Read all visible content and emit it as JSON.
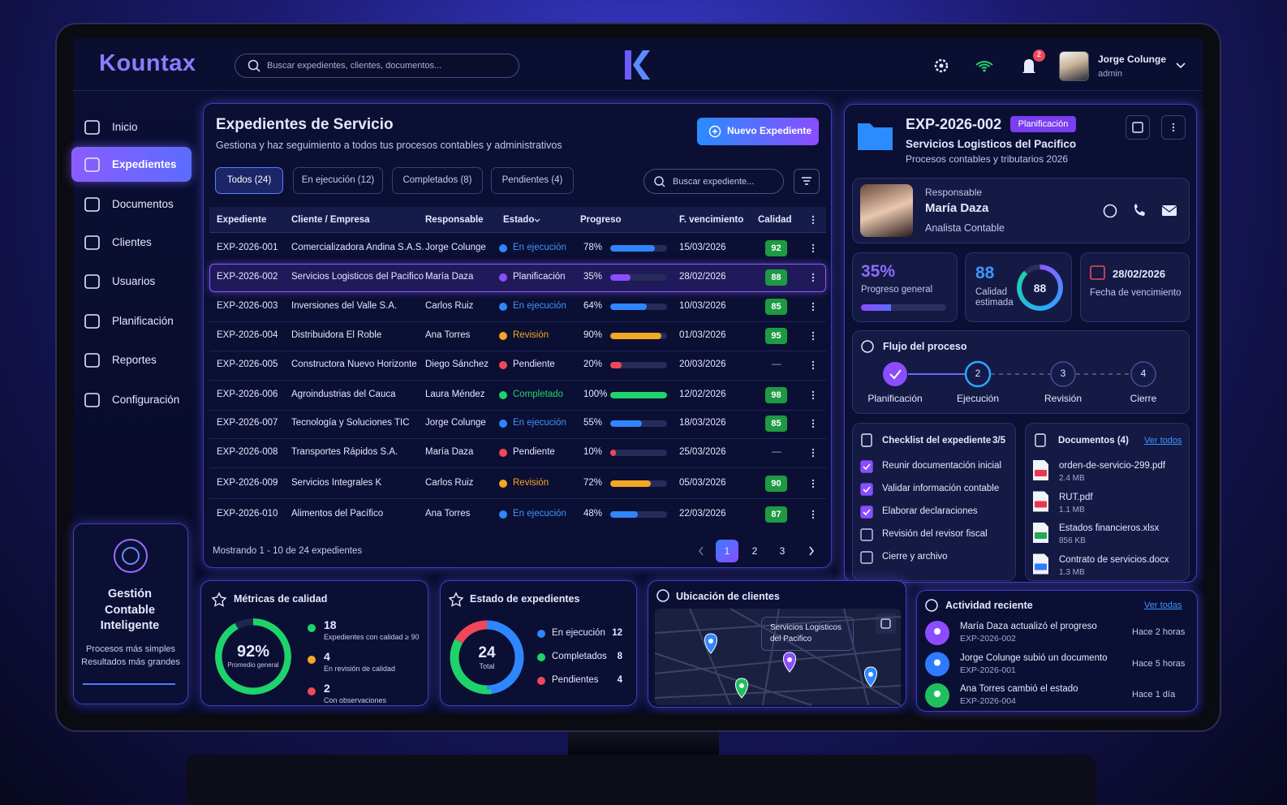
{
  "header": {
    "brand": "Kountax",
    "search_placeholder": "Buscar expedientes, clientes, documentos...",
    "notifications": "2",
    "user_name": "Jorge Colunge",
    "user_role": "admin"
  },
  "sidebar": {
    "items": [
      "Inicio",
      "Expedientes",
      "Documentos",
      "Clientes",
      "Usuarios",
      "Planificación",
      "Reportes",
      "Configuración"
    ],
    "active": 1,
    "promo_title": "Gestión Contable Inteligente",
    "promo_lines": [
      "Procesos más simples",
      "Resultados más grandes"
    ]
  },
  "main": {
    "title": "Expedientes de Servicio",
    "subtitle": "Gestiona y haz seguimiento a todos tus procesos contables y administrativos",
    "button": "Nuevo Expediente",
    "tabs": [
      "Todos (24)",
      "En ejecución (12)",
      "Completados (8)",
      "Pendientes (4)"
    ],
    "active_tab": 0,
    "search_placeholder": "Buscar expediente...",
    "columns": [
      "Expediente",
      "Cliente / Empresa",
      "Responsable",
      "Estado",
      "Progreso",
      "F. vencimiento",
      "Calidad"
    ],
    "selected_row": 1,
    "rows": [
      {
        "id": "EXP-2026-001",
        "client": "Comercializadora Andina S.A.S.",
        "owner": "Jorge Colunge",
        "status": "En ejecución",
        "color": "#2f86ff",
        "status_text_color": "#3d95ff",
        "progress": 78,
        "progress_label": "78%",
        "due": "15/03/2026",
        "quality": 92
      },
      {
        "id": "EXP-2026-002",
        "client": "Servicios Logisticos del Pacifico",
        "owner": "María Daza",
        "status": "Planificación",
        "color": "#8b4dff",
        "status_text_color": "#e6e8ff",
        "progress": 35,
        "progress_label": "35%",
        "due": "28/02/2026",
        "quality": 88
      },
      {
        "id": "EXP-2026-003",
        "client": "Inversiones del Valle S.A.",
        "owner": "Carlos Ruiz",
        "status": "En ejecución",
        "color": "#2f86ff",
        "status_text_color": "#3d95ff",
        "progress": 64,
        "progress_label": "64%",
        "due": "10/03/2026",
        "quality": 85
      },
      {
        "id": "EXP-2026-004",
        "client": "Distribuidora El Roble",
        "owner": "Ana Torres",
        "status": "Revisión",
        "color": "#f5a623",
        "status_text_color": "#f5a623",
        "progress": 90,
        "progress_label": "90%",
        "due": "01/03/2026",
        "quality": 95
      },
      {
        "id": "EXP-2026-005",
        "client": "Constructora Nuevo Horizonte",
        "owner": "Diego Sánchez",
        "status": "Pendiente",
        "color": "#f0475a",
        "status_text_color": "#e6e8ff",
        "progress": 20,
        "progress_label": "20%",
        "due": "20/03/2026",
        "quality": "—"
      },
      {
        "id": "EXP-2026-006",
        "client": "Agroindustrias del Cauca",
        "owner": "Laura Méndez",
        "status": "Completado",
        "color": "#1fd36b",
        "status_text_color": "#22d46e",
        "progress": 100,
        "progress_label": "100%",
        "due": "12/02/2026",
        "quality": 98
      },
      {
        "id": "EXP-2026-007",
        "client": "Tecnología y Soluciones TIC",
        "owner": "Jorge Colunge",
        "status": "En ejecución",
        "color": "#2f86ff",
        "status_text_color": "#3d95ff",
        "progress": 55,
        "progress_label": "55%",
        "due": "18/03/2026",
        "quality": 85
      },
      {
        "id": "EXP-2026-008",
        "client": "Transportes Rápidos S.A.",
        "owner": "María Daza",
        "status": "Pendiente",
        "color": "#f0475a",
        "status_text_color": "#e6e8ff",
        "progress": 10,
        "progress_label": "10%",
        "due": "25/03/2026",
        "quality": "—"
      },
      {
        "id": "EXP-2026-009",
        "client": "Servicios Integrales K",
        "owner": "Carlos Ruiz",
        "status": "Revisión",
        "color": "#f5a623",
        "status_text_color": "#f5a623",
        "progress": 72,
        "progress_label": "72%",
        "due": "05/03/2026",
        "quality": 90
      },
      {
        "id": "EXP-2026-010",
        "client": "Alimentos del Pacífico",
        "owner": "Ana Torres",
        "status": "En ejecución",
        "color": "#2f86ff",
        "status_text_color": "#3d95ff",
        "progress": 48,
        "progress_label": "48%",
        "due": "22/03/2026",
        "quality": 87
      }
    ],
    "footer": "Mostrando 1 - 10 de 24 expedientes",
    "pages": [
      1,
      2,
      3
    ],
    "active_page": 0
  },
  "detail": {
    "id": "EXP-2026-002",
    "badge": "Planificación",
    "client": "Servicios Logisticos del Pacifico",
    "description": "Procesos contables y tributarios 2026",
    "responsible_label": "Responsable",
    "responsible_name": "María Daza",
    "responsible_role": "Analista Contable",
    "progress": 35,
    "progress_label": "35%",
    "progress_caption": "Progreso general",
    "quality": 88,
    "quality_caption": "Calidad estimada",
    "due": "28/02/2026",
    "due_caption": "Fecha de vencimiento",
    "flow_title": "Flujo del proceso",
    "flow_current": 1,
    "flow_steps": [
      {
        "label": "Planificación"
      },
      {
        "number": "2",
        "label": "Ejecución"
      },
      {
        "number": "3",
        "label": "Revisión"
      },
      {
        "number": "4",
        "label": "Cierre"
      }
    ],
    "checklist_title": "Checklist del expediente",
    "checklist_count": "3/5",
    "checklist": [
      {
        "text": "Reunir documentación inicial",
        "done": true
      },
      {
        "text": "Validar información contable",
        "done": true
      },
      {
        "text": "Elaborar declaraciones",
        "done": true
      },
      {
        "text": "Revisión del revisor fiscal",
        "done": false
      },
      {
        "text": "Cierre y archivo",
        "done": false
      }
    ],
    "documents_title": "Documentos (4)",
    "documents_link": "Ver todos",
    "documents": [
      {
        "name": "orden-de-servicio-299.pdf",
        "size": "2.4 MB",
        "color": "#e8384f"
      },
      {
        "name": "RUT.pdf",
        "size": "1.1 MB",
        "color": "#e8384f"
      },
      {
        "name": "Estados financieros.xlsx",
        "size": "856 KB",
        "color": "#1faa55"
      },
      {
        "name": "Contrato de servicios.docx",
        "size": "1.3 MB",
        "color": "#2f7bff"
      }
    ]
  },
  "quality_metrics": {
    "title": "Métricas de calidad",
    "value": 92,
    "value_label": "92%",
    "caption": "Promedio general",
    "color": "#1fd36b",
    "items": [
      {
        "value": 18,
        "text": "Expedientes con calidad ≥ 90",
        "color": "#1fd36b"
      },
      {
        "value": 4,
        "text": "En revisión de calidad",
        "color": "#f5a623"
      },
      {
        "value": 2,
        "text": "Con observaciones",
        "color": "#f0475a"
      }
    ]
  },
  "status_chart": {
    "type": "donut",
    "title": "Estado de expedientes",
    "total": 24,
    "total_caption": "Total",
    "series": [
      {
        "name": "En ejecución",
        "value": 12,
        "color": "#2f86ff"
      },
      {
        "name": "Completados",
        "value": 8,
        "color": "#1fd36b"
      },
      {
        "name": "Pendientes",
        "value": 4,
        "color": "#f0475a"
      }
    ]
  },
  "map": {
    "title": "Ubicación de clientes",
    "tooltip": "Servicios Logisticos del Pacifico"
  },
  "activity": {
    "title": "Actividad reciente",
    "link": "Ver todas",
    "items": [
      {
        "text": "María Daza actualizó el progreso",
        "ref": "EXP-2026-002",
        "time": "Hace 2 horas",
        "color": "#8b4dff"
      },
      {
        "text": "Jorge Colunge subió un documento",
        "ref": "EXP-2026-001",
        "time": "Hace 5 horas",
        "color": "#2f7bff"
      },
      {
        "text": "Ana Torres cambió el estado",
        "ref": "EXP-2026-004",
        "time": "Hace 1 día",
        "color": "#1fbf5f"
      }
    ]
  }
}
